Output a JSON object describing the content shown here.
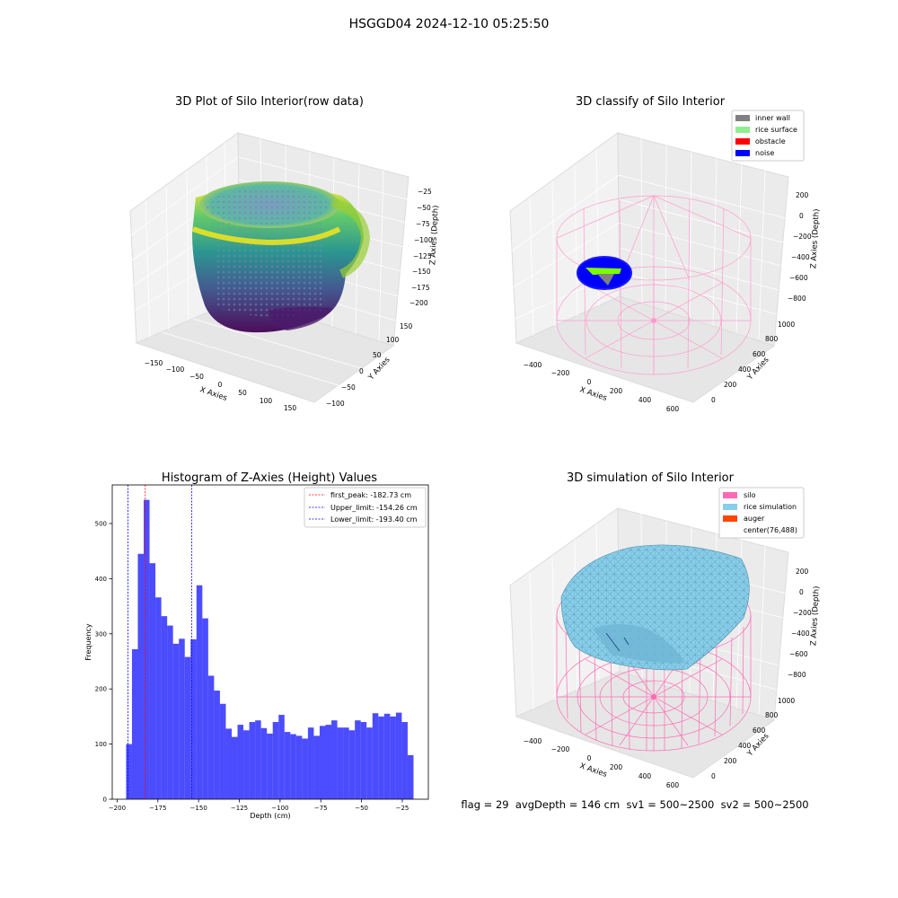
{
  "figure": {
    "suptitle": "HSGGD04 2024-12-10 05:25:50",
    "info_line": "flag = 29  avgDepth = 146 cm  sv1 = 500~2500  sv2 = 500~2500"
  },
  "panels": {
    "raw": {
      "title": "3D Plot of Silo Interior(row data)",
      "xlabel": "X Axies",
      "ylabel": "Y Axies",
      "zlabel": "Z Axies (Depth)",
      "xticks": [
        "−150",
        "−100",
        "−50",
        "0",
        "50",
        "100",
        "150"
      ],
      "yticks": [
        "−100",
        "−50",
        "0",
        "50",
        "100",
        "150"
      ],
      "zticks": [
        "−25",
        "−50",
        "−75",
        "−100",
        "−125",
        "−150",
        "−175",
        "−200"
      ]
    },
    "classify": {
      "title": "3D classify of Silo Interior",
      "xlabel": "X Axies",
      "ylabel": "Y Axies",
      "zlabel": "Z Axies (Depth)",
      "xticks": [
        "−400",
        "−200",
        "0",
        "200",
        "400",
        "600"
      ],
      "yticks": [
        "0",
        "200",
        "400",
        "600",
        "800",
        "1000"
      ],
      "zticks": [
        "200",
        "0",
        "−200",
        "−400",
        "−600",
        "−800"
      ],
      "legend": [
        {
          "label": "inner wall",
          "color": "#808080"
        },
        {
          "label": "rice surface",
          "color": "#90ee90"
        },
        {
          "label": "obstacle",
          "color": "#ff0000"
        },
        {
          "label": "noise",
          "color": "#0000ff"
        }
      ]
    },
    "simulation": {
      "title": "3D simulation of Silo Interior",
      "xlabel": "X Axies",
      "ylabel": "Y Axies",
      "zlabel": "Z Axies (Depth)",
      "xticks": [
        "−400",
        "−200",
        "0",
        "200",
        "400",
        "600"
      ],
      "yticks": [
        "0",
        "200",
        "400",
        "600",
        "800",
        "1000"
      ],
      "zticks": [
        "200",
        "0",
        "−200",
        "−400",
        "−600",
        "−800"
      ],
      "legend": [
        {
          "label": "silo",
          "color": "#ff69b4"
        },
        {
          "label": "rice simulation",
          "color": "#87ceeb"
        },
        {
          "label": "auger",
          "color": "#ff4500"
        },
        {
          "label": "center(76,488)",
          "color": ""
        }
      ]
    }
  },
  "chart_data": [
    {
      "type": "bar",
      "title": "Histogram of Z-Axies (Height) Values",
      "xlabel": "Depth (cm)",
      "ylabel": "Frequency",
      "xlim": [
        -203,
        -9
      ],
      "ylim": [
        0,
        570
      ],
      "xticks": [
        -200,
        -175,
        -150,
        -125,
        -100,
        -75,
        -50,
        -25
      ],
      "xtick_labels": [
        "−200",
        "−175",
        "−150",
        "−125",
        "−100",
        "−75",
        "−50",
        "−25"
      ],
      "yticks": [
        0,
        100,
        200,
        300,
        400,
        500
      ],
      "bar_color": "#0000ff",
      "bin_start": -194.5,
      "bin_width": 3.6,
      "values": [
        100,
        272,
        445,
        543,
        428,
        366,
        332,
        315,
        282,
        291,
        258,
        290,
        388,
        328,
        224,
        197,
        173,
        128,
        113,
        135,
        125,
        140,
        143,
        129,
        119,
        140,
        153,
        122,
        118,
        115,
        110,
        130,
        115,
        133,
        135,
        143,
        130,
        130,
        125,
        143,
        140,
        130,
        156,
        150,
        155,
        150,
        157,
        140,
        80
      ],
      "vlines": [
        {
          "x": -182.73,
          "label": "first_peak: -182.73 cm",
          "color": "#ff0000"
        },
        {
          "x": -154.26,
          "label": "Upper_limit: -154.26 cm",
          "color": "#0000ff"
        },
        {
          "x": -193.4,
          "label": "Lower_limit: -193.40 cm",
          "color": "#0000ff"
        }
      ]
    }
  ]
}
